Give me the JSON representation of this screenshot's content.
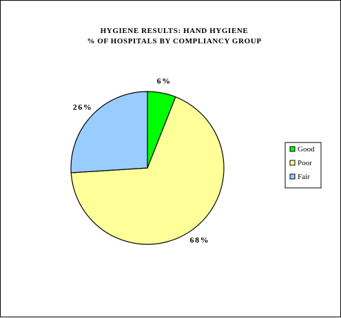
{
  "chart_data": {
    "type": "pie",
    "title": "HYGIENE RESULTS: HAND HYGIENE",
    "subtitle": "% OF HOSPITALS BY COMPLIANCY GROUP",
    "categories": [
      "Good",
      "Poor",
      "Fair"
    ],
    "values": [
      6,
      68,
      26
    ],
    "labels": [
      "6%",
      "68%",
      "26%"
    ],
    "colors": [
      "#00ff00",
      "#ffff99",
      "#99ccff"
    ],
    "legend": [
      "Good",
      "Poor",
      "Fair"
    ],
    "legend_position": "right",
    "start_angle_deg": 0,
    "direction": "clockwise"
  }
}
